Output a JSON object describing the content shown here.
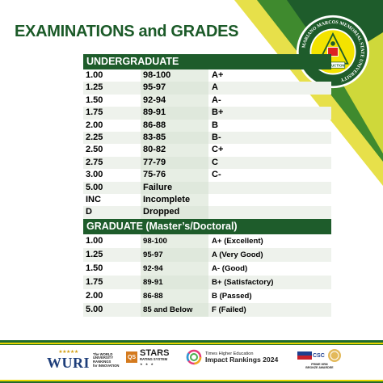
{
  "title": "EXAMINATIONS and GRADES",
  "seal": {
    "ring_text": "MARIANO MARCOS MEMORIAL STATE UNIVERSITY",
    "inner_text": "INSTRUCTION",
    "colors": {
      "ring": "#1e5c2b",
      "inner": "#f5e400",
      "border": "#ffffff"
    }
  },
  "colors": {
    "accent_green": "#1e5c2b",
    "accent_yellow": "#e7d600",
    "header_text": "#ffffff"
  },
  "undergraduate": {
    "heading": "UNDERGRADUATE",
    "rows": [
      [
        "1.00",
        "98-100",
        "A+"
      ],
      [
        "1.25",
        "95-97",
        "A"
      ],
      [
        "1.50",
        "92-94",
        "A-"
      ],
      [
        "1.75",
        "89-91",
        "B+"
      ],
      [
        "2.00",
        "86-88",
        "B"
      ],
      [
        "2.25",
        "83-85",
        "B-"
      ],
      [
        "2.50",
        "80-82",
        "C+"
      ],
      [
        "2.75",
        "77-79",
        "C"
      ],
      [
        "3.00",
        "75-76",
        "C-"
      ],
      [
        "5.00",
        "Failure",
        ""
      ],
      [
        "INC",
        "Incomplete",
        ""
      ],
      [
        "D",
        "Dropped",
        ""
      ]
    ]
  },
  "graduate": {
    "heading": "GRADUATE (Master’s/Doctoral)",
    "rows": [
      [
        "1.00",
        "98-100",
        "A+ (Excellent)"
      ],
      [
        "1.25",
        "95-97",
        "A (Very Good)"
      ],
      [
        "1.50",
        "92-94",
        "A- (Good)"
      ],
      [
        "1.75",
        "89-91",
        "B+ (Satisfactory)"
      ],
      [
        "2.00",
        "86-88",
        "B (Passed)"
      ],
      [
        "5.00",
        "85 and Below",
        "F (Failed)"
      ]
    ]
  },
  "footer": {
    "wuri": {
      "name": "WURI",
      "caption_1": "The WORLD",
      "caption_2": "UNIVERSITY",
      "caption_3": "RANKINGS",
      "caption_4": "for INNOVATION"
    },
    "qs": {
      "badge": "QS",
      "name": "STARS",
      "caption": "RATING SYSTEM",
      "stars": "★ ★ ★"
    },
    "the": {
      "line1": "Times Higher Education",
      "line2": "Impact Rankings 2024"
    },
    "csc": {
      "badge": "CSC",
      "caption_1": "PRIME HRM",
      "caption_2": "BRONZE AWARDEE"
    }
  }
}
